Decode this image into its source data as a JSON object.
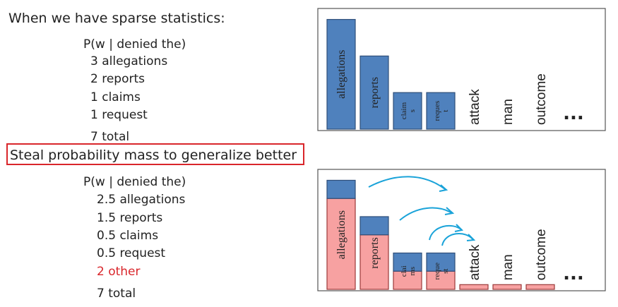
{
  "text": {
    "heading": "When we have sparse statistics:",
    "top_given": "P(w | denied the)",
    "top_counts": [
      "3 allegations",
      "2 reports",
      "1 claims",
      "1 request"
    ],
    "top_total": "7 total",
    "callout": "Steal probability mass to generalize better",
    "bottom_given": "P(w | denied the)",
    "bottom_counts": [
      "2.5 allegations",
      "1.5 reports",
      "0.5 claims",
      "0.5 request"
    ],
    "bottom_other": "2 other",
    "bottom_total": "7 total"
  },
  "chart_data": [
    {
      "type": "bar",
      "categories": [
        "allegations",
        "reports",
        "claim\ns",
        "reques\nt",
        "attack",
        "man",
        "outcome",
        "..."
      ],
      "values": [
        3,
        2,
        1,
        1,
        0,
        0,
        0,
        null
      ],
      "color": "#4f81bd",
      "ylim": [
        0,
        3.3
      ]
    },
    {
      "type": "stacked-bar",
      "categories": [
        "allegations",
        "reports",
        "clai\nms",
        "reque\nst",
        "attack",
        "man",
        "outcome",
        "..."
      ],
      "series": [
        {
          "color": "#f7a1a1",
          "values": [
            2.5,
            1.5,
            0.5,
            0.5,
            0.13,
            0.13,
            0.13,
            null
          ]
        },
        {
          "color": "#4f81bd",
          "values": [
            0.5,
            0.5,
            0.5,
            0.5,
            0,
            0,
            0,
            null
          ]
        }
      ],
      "ylim": [
        0,
        3.3
      ]
    }
  ]
}
